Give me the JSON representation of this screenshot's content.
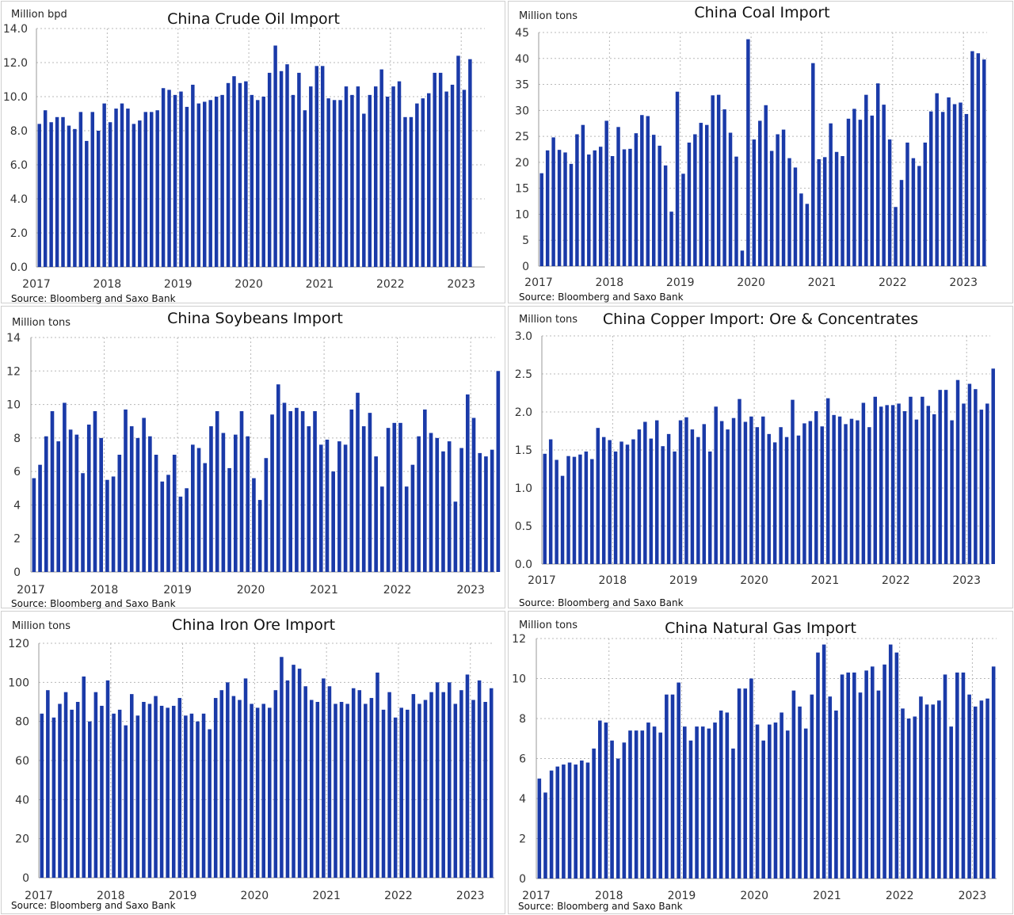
{
  "chart_data": [
    {
      "type": "bar",
      "title": "China Crude Oil Import",
      "ylabel": "Million bpd",
      "source": "Source: Bloomberg and Saxo Bank",
      "ylim": [
        0,
        14
      ],
      "yticks": [
        "0.0",
        "2.0",
        "4.0",
        "6.0",
        "8.0",
        "10.0",
        "12.0",
        "14.0"
      ],
      "xticks": [
        "2017",
        "2018",
        "2019",
        "2020",
        "2021",
        "2022",
        "2023"
      ],
      "grid": true,
      "color": "#1a3aa8",
      "start": "2017-01",
      "values": [
        8.4,
        9.2,
        8.5,
        8.8,
        8.8,
        8.3,
        8.1,
        9.1,
        7.4,
        9.1,
        8.0,
        9.6,
        8.5,
        9.3,
        9.6,
        9.3,
        8.4,
        8.6,
        9.1,
        9.1,
        9.2,
        10.5,
        10.4,
        10.1,
        10.3,
        9.4,
        10.7,
        9.6,
        9.7,
        9.8,
        10.0,
        10.1,
        10.8,
        11.2,
        10.8,
        10.9,
        10.1,
        9.8,
        10.0,
        11.4,
        13.0,
        11.5,
        11.9,
        10.1,
        11.4,
        9.2,
        10.6,
        11.8,
        11.8,
        9.9,
        9.8,
        9.8,
        10.6,
        10.1,
        10.6,
        9.0,
        10.1,
        10.6,
        11.6,
        10.0,
        10.6,
        10.9,
        8.8,
        8.8,
        9.6,
        9.9,
        10.2,
        11.4,
        11.4,
        10.3,
        10.7,
        12.4,
        10.4,
        12.2
      ]
    },
    {
      "type": "bar",
      "title": "China Coal Import",
      "ylabel": "Million tons",
      "source": "Source: Bloomberg and Saxo Bank",
      "ylim": [
        0,
        45
      ],
      "yticks": [
        "0",
        "5",
        "10",
        "15",
        "20",
        "25",
        "30",
        "35",
        "40",
        "45"
      ],
      "xticks": [
        "2017",
        "2018",
        "2019",
        "2020",
        "2021",
        "2022",
        "2023"
      ],
      "grid": true,
      "color": "#1a3aa8",
      "start": "2017-01",
      "values": [
        17.9,
        22.3,
        24.8,
        22.4,
        21.9,
        19.7,
        25.4,
        27.2,
        21.5,
        22.3,
        23.0,
        28.0,
        21.2,
        26.8,
        22.5,
        22.6,
        25.6,
        29.1,
        28.9,
        25.3,
        23.2,
        19.4,
        10.5,
        33.6,
        17.8,
        23.8,
        25.4,
        27.6,
        27.2,
        32.9,
        33.0,
        30.2,
        25.7,
        21.1,
        3.0,
        43.7,
        24.4,
        28.0,
        31.0,
        22.2,
        25.4,
        26.3,
        20.8,
        19.0,
        14.0,
        12.0,
        39.1,
        20.6,
        21.0,
        27.5,
        22.0,
        21.2,
        28.4,
        30.3,
        28.2,
        33.0,
        29.0,
        35.2,
        31.1,
        24.4,
        11.4,
        16.6,
        23.8,
        20.8,
        19.3,
        23.8,
        29.8,
        33.3,
        29.7,
        32.5,
        31.2,
        31.5,
        29.3,
        41.4,
        41.0,
        39.8
      ]
    },
    {
      "type": "bar",
      "title": "China Soybeans Import",
      "ylabel": "Million tons",
      "source": "Source: Bloomberg and Saxo Bank",
      "ylim": [
        0,
        14
      ],
      "yticks": [
        "0",
        "2",
        "4",
        "6",
        "8",
        "10",
        "12",
        "14"
      ],
      "xticks": [
        "2017",
        "2018",
        "2019",
        "2020",
        "2021",
        "2022",
        "2023"
      ],
      "grid": true,
      "color": "#1a3aa8",
      "start": "2017-01",
      "values": [
        5.6,
        6.4,
        8.1,
        9.6,
        7.8,
        10.1,
        8.5,
        8.2,
        5.9,
        8.8,
        9.6,
        8.0,
        5.5,
        5.7,
        7.0,
        9.7,
        8.7,
        8.0,
        9.2,
        8.1,
        7.0,
        5.4,
        5.8,
        7.0,
        4.5,
        5.0,
        7.6,
        7.4,
        6.5,
        8.7,
        9.6,
        8.3,
        6.2,
        8.2,
        9.6,
        8.1,
        5.6,
        4.3,
        6.8,
        9.4,
        11.2,
        10.1,
        9.6,
        9.8,
        9.6,
        8.7,
        9.6,
        7.6,
        7.9,
        6.0,
        7.8,
        7.6,
        9.7,
        10.7,
        8.7,
        9.5,
        6.9,
        5.1,
        8.6,
        8.9,
        8.9,
        5.1,
        6.4,
        8.1,
        9.7,
        8.3,
        8.0,
        7.2,
        7.8,
        4.2,
        7.4,
        10.6,
        9.2,
        7.1,
        6.9,
        7.3,
        12.0
      ]
    },
    {
      "type": "bar",
      "title": "China Copper Import: Ore & Concentrates",
      "ylabel": "Million tons",
      "source": "Source: Bloomberg and Saxo Bank",
      "ylim": [
        0,
        3
      ],
      "yticks": [
        "0.0",
        "0.5",
        "1.0",
        "1.5",
        "2.0",
        "2.5",
        "3.0"
      ],
      "xticks": [
        "2017",
        "2018",
        "2019",
        "2020",
        "2021",
        "2022",
        "2023"
      ],
      "grid": true,
      "color": "#1a3aa8",
      "start": "2017-01",
      "values": [
        1.45,
        1.64,
        1.37,
        1.16,
        1.42,
        1.41,
        1.44,
        1.48,
        1.38,
        1.79,
        1.67,
        1.63,
        1.48,
        1.61,
        1.57,
        1.64,
        1.77,
        1.87,
        1.65,
        1.89,
        1.55,
        1.71,
        1.48,
        1.89,
        1.93,
        1.77,
        1.67,
        1.84,
        1.48,
        2.07,
        1.88,
        1.77,
        1.92,
        2.17,
        1.87,
        1.94,
        1.8,
        1.94,
        1.71,
        1.6,
        1.8,
        1.67,
        2.16,
        1.69,
        1.85,
        1.88,
        2.01,
        1.81,
        2.18,
        1.96,
        1.94,
        1.84,
        1.91,
        1.89,
        2.12,
        1.8,
        2.2,
        2.07,
        2.09,
        2.09,
        2.11,
        2.01,
        2.2,
        1.9,
        2.2,
        2.08,
        1.97,
        2.29,
        2.29,
        1.89,
        2.42,
        2.11,
        2.37,
        2.3,
        2.03,
        2.11,
        2.57
      ]
    },
    {
      "type": "bar",
      "title": "China Iron Ore Import",
      "ylabel": "Million tons",
      "source": "Source: Bloomberg and Saxo Bank",
      "ylim": [
        0,
        120
      ],
      "yticks": [
        "0",
        "20",
        "40",
        "60",
        "80",
        "100",
        "120"
      ],
      "xticks": [
        "2017",
        "2018",
        "2019",
        "2020",
        "2021",
        "2022",
        "2023"
      ],
      "grid": true,
      "color": "#1a3aa8",
      "start": "2017-01",
      "values": [
        84,
        96,
        82,
        89,
        95,
        86,
        90,
        103,
        80,
        95,
        88,
        101,
        84,
        86,
        78,
        94,
        83,
        90,
        89,
        93,
        88,
        87,
        88,
        92,
        83,
        84,
        80,
        84,
        76,
        92,
        96,
        100,
        93,
        91,
        102,
        89,
        87,
        89,
        87,
        96,
        113,
        101,
        109,
        107,
        98,
        91,
        90,
        102,
        98,
        89,
        90,
        89,
        97,
        96,
        89,
        92,
        105,
        86,
        95,
        82,
        87,
        86,
        94,
        89,
        91,
        95,
        100,
        95,
        100,
        89,
        96,
        104,
        91,
        101,
        90,
        97
      ]
    },
    {
      "type": "bar",
      "title": "China Natural Gas Import",
      "ylabel": "Million tons",
      "source": "Source: Bloomberg and Saxo Bank",
      "ylim": [
        0,
        12
      ],
      "yticks": [
        "0",
        "2",
        "4",
        "6",
        "8",
        "10",
        "12"
      ],
      "xticks": [
        "2017",
        "2018",
        "2019",
        "2020",
        "2021",
        "2022",
        "2023"
      ],
      "grid": true,
      "color": "#1a3aa8",
      "start": "2017-01",
      "values": [
        5.0,
        4.3,
        5.4,
        5.6,
        5.7,
        5.8,
        5.7,
        5.9,
        5.8,
        6.5,
        7.9,
        7.8,
        6.9,
        6.0,
        6.8,
        7.4,
        7.4,
        7.4,
        7.8,
        7.6,
        7.3,
        9.2,
        9.2,
        9.8,
        7.6,
        6.9,
        7.6,
        7.6,
        7.5,
        7.8,
        8.4,
        8.3,
        6.5,
        9.5,
        9.5,
        10.0,
        7.7,
        6.9,
        7.7,
        7.8,
        8.3,
        7.4,
        9.4,
        8.6,
        7.5,
        9.2,
        11.3,
        11.7,
        9.1,
        8.4,
        10.2,
        10.3,
        10.3,
        9.3,
        10.4,
        10.6,
        9.4,
        10.7,
        11.7,
        11.3,
        8.5,
        8.0,
        8.1,
        9.1,
        8.7,
        8.7,
        8.9,
        10.2,
        7.6,
        10.3,
        10.3,
        9.2,
        8.6,
        8.9,
        9.0,
        10.6
      ]
    }
  ]
}
